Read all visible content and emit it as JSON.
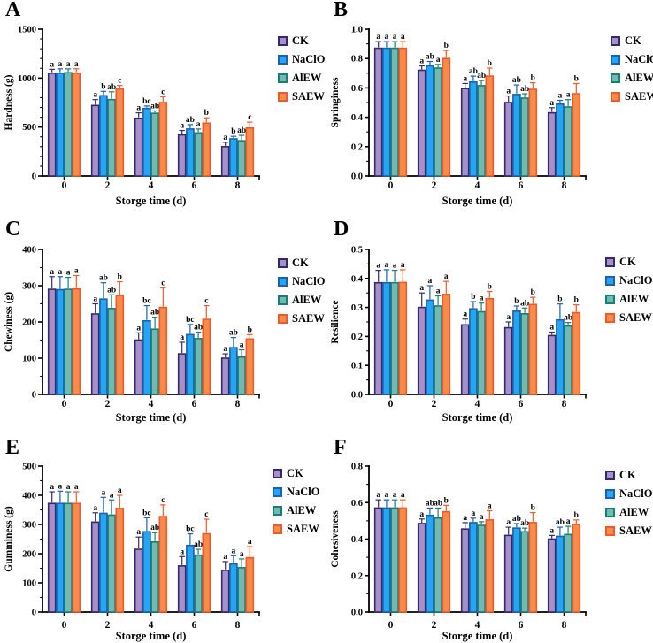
{
  "colors": {
    "CK": {
      "fill": "#a78fc9",
      "stroke": "#332a6b"
    },
    "NaClO": {
      "fill": "#24a7f0",
      "stroke": "#1d5fb5"
    },
    "AlEW": {
      "fill": "#73b9b1",
      "stroke": "#158078"
    },
    "SAEW": {
      "fill": "#f78b4c",
      "stroke": "#ee5a28"
    }
  },
  "chart_data": [
    {
      "panel": "A",
      "type": "bar",
      "title": "",
      "xlabel": "Storge time (d)",
      "ylabel": "Hardness (g)",
      "ylim": [
        0,
        1500
      ],
      "yticks": [
        "0",
        "500",
        "1000",
        "1500"
      ],
      "minor_per_interval": 4,
      "categories": [
        "0",
        "2",
        "4",
        "6",
        "8"
      ],
      "legend": [
        "CK",
        "NaClO",
        "AlEW",
        "SAEW"
      ],
      "legend_position": "right",
      "grid": false,
      "series": [
        {
          "name": "CK",
          "values": [
            1050,
            720,
            590,
            420,
            300
          ],
          "errors": [
            40,
            60,
            55,
            45,
            45
          ],
          "sig_letters": [
            "a",
            "a",
            "a",
            "a",
            "a"
          ]
        },
        {
          "name": "NaClO",
          "values": [
            1050,
            820,
            690,
            480,
            380
          ],
          "errors": [
            45,
            45,
            25,
            45,
            25
          ],
          "sig_letters": [
            "a",
            "b",
            "bc",
            "ab",
            "b"
          ]
        },
        {
          "name": "AlEW",
          "values": [
            1055,
            780,
            640,
            440,
            360
          ],
          "errors": [
            40,
            80,
            25,
            40,
            55
          ],
          "sig_letters": [
            "a",
            "ab",
            "ab",
            "a",
            "ab"
          ]
        },
        {
          "name": "SAEW",
          "values": [
            1050,
            890,
            750,
            540,
            490
          ],
          "errors": [
            45,
            35,
            60,
            55,
            60
          ],
          "sig_letters": [
            "a",
            "c",
            "c",
            "b",
            "c"
          ]
        }
      ]
    },
    {
      "panel": "B",
      "type": "bar",
      "title": "",
      "xlabel": "Storge time (d)",
      "ylabel": "Springiness",
      "ylim": [
        0,
        1.0
      ],
      "yticks": [
        "0.0",
        "0.2",
        "0.4",
        "0.6",
        "0.8",
        "1.0"
      ],
      "minor_per_interval": 1,
      "categories": [
        "0",
        "2",
        "4",
        "6",
        "8"
      ],
      "legend": [
        "CK",
        "NaClO",
        "AlEW",
        "SAEW"
      ],
      "legend_position": "right",
      "grid": false,
      "series": [
        {
          "name": "CK",
          "values": [
            0.87,
            0.72,
            0.595,
            0.5,
            0.43
          ],
          "errors": [
            0.045,
            0.03,
            0.035,
            0.045,
            0.035
          ],
          "sig_letters": [
            "a",
            "a",
            "a",
            "a",
            "a"
          ]
        },
        {
          "name": "NaClO",
          "values": [
            0.87,
            0.75,
            0.64,
            0.555,
            0.49
          ],
          "errors": [
            0.045,
            0.03,
            0.04,
            0.065,
            0.025
          ],
          "sig_letters": [
            "a",
            "ab",
            "ab",
            "ab",
            "a"
          ]
        },
        {
          "name": "AlEW",
          "values": [
            0.87,
            0.735,
            0.615,
            0.53,
            0.47
          ],
          "errors": [
            0.045,
            0.025,
            0.035,
            0.03,
            0.05
          ],
          "sig_letters": [
            "a",
            "a",
            "ab",
            "ab",
            "a"
          ]
        },
        {
          "name": "SAEW",
          "values": [
            0.87,
            0.8,
            0.68,
            0.59,
            0.56
          ],
          "errors": [
            0.045,
            0.055,
            0.055,
            0.045,
            0.07
          ],
          "sig_letters": [
            "a",
            "b",
            "b",
            "b",
            "b"
          ]
        }
      ]
    },
    {
      "panel": "C",
      "type": "bar",
      "title": "",
      "xlabel": "Storge time (d)",
      "ylabel": "Chewiness (g)",
      "ylim": [
        0,
        400
      ],
      "yticks": [
        "0",
        "100",
        "200",
        "300",
        "400"
      ],
      "minor_per_interval": 1,
      "categories": [
        "0",
        "2",
        "4",
        "6",
        "8"
      ],
      "legend": [
        "CK",
        "NaClO",
        "AlEW",
        "SAEW"
      ],
      "legend_position": "right",
      "grid": false,
      "series": [
        {
          "name": "CK",
          "values": [
            290,
            222,
            150,
            112,
            100
          ],
          "errors": [
            35,
            28,
            20,
            32,
            12
          ],
          "sig_letters": [
            "a",
            "a",
            "a",
            "a",
            "a"
          ]
        },
        {
          "name": "NaClO",
          "values": [
            289,
            263,
            203,
            165,
            129
          ],
          "errors": [
            36,
            45,
            42,
            28,
            28
          ],
          "sig_letters": [
            "a",
            "ab",
            "bc",
            "bc",
            "ab"
          ]
        },
        {
          "name": "AlEW",
          "values": [
            290,
            237,
            180,
            154,
            103
          ],
          "errors": [
            33,
            38,
            33,
            18,
            20
          ],
          "sig_letters": [
            "a",
            "ab",
            "ab",
            "ab",
            "a"
          ]
        },
        {
          "name": "SAEW",
          "values": [
            291,
            273,
            240,
            207,
            153
          ],
          "errors": [
            37,
            38,
            54,
            38,
            12
          ],
          "sig_letters": [
            "a",
            "b",
            "c",
            "c",
            "b"
          ]
        }
      ]
    },
    {
      "panel": "D",
      "type": "bar",
      "title": "",
      "xlabel": "Storge time (d)",
      "ylabel": "Resilience",
      "ylim": [
        0,
        0.5
      ],
      "yticks": [
        "0.0",
        "0.1",
        "0.2",
        "0.3",
        "0.4",
        "0.5"
      ],
      "minor_per_interval": 1,
      "categories": [
        "0",
        "2",
        "4",
        "6",
        "8"
      ],
      "legend": [
        "CK",
        "NaClO",
        "AlEW",
        "SAEW"
      ],
      "legend_position": "right",
      "grid": false,
      "series": [
        {
          "name": "CK",
          "values": [
            0.385,
            0.3,
            0.24,
            0.23,
            0.203
          ],
          "errors": [
            0.043,
            0.05,
            0.02,
            0.02,
            0.012
          ],
          "sig_letters": [
            "a",
            "a",
            "a",
            "a",
            "a"
          ]
        },
        {
          "name": "NaClO",
          "values": [
            0.385,
            0.325,
            0.295,
            0.287,
            0.257
          ],
          "errors": [
            0.045,
            0.05,
            0.025,
            0.018,
            0.055
          ],
          "sig_letters": [
            "a",
            "a",
            "b",
            "b",
            "b"
          ]
        },
        {
          "name": "AlEW",
          "values": [
            0.385,
            0.305,
            0.285,
            0.278,
            0.236
          ],
          "errors": [
            0.043,
            0.035,
            0.03,
            0.02,
            0.012
          ],
          "sig_letters": [
            "a",
            "a",
            "a",
            "ab",
            "ab"
          ]
        },
        {
          "name": "SAEW",
          "values": [
            0.386,
            0.345,
            0.33,
            0.31,
            0.282
          ],
          "errors": [
            0.044,
            0.045,
            0.025,
            0.025,
            0.027
          ],
          "sig_letters": [
            "a",
            "a",
            "b",
            "b",
            "b"
          ]
        }
      ]
    },
    {
      "panel": "E",
      "type": "bar",
      "title": "",
      "xlabel": "Storge time (d)",
      "ylabel": "Gumminess (g)",
      "ylim": [
        0,
        500
      ],
      "yticks": [
        "0",
        "100",
        "200",
        "300",
        "400",
        "500"
      ],
      "minor_per_interval": 1,
      "categories": [
        "0",
        "2",
        "4",
        "6",
        "8"
      ],
      "legend": [
        "CK",
        "NaClO",
        "AlEW",
        "SAEW"
      ],
      "legend_position": "right",
      "grid": false,
      "series": [
        {
          "name": "CK",
          "values": [
            372,
            308,
            215,
            158,
            143
          ],
          "errors": [
            40,
            32,
            42,
            32,
            30
          ],
          "sig_letters": [
            "a",
            "a",
            "a",
            "a",
            "a"
          ]
        },
        {
          "name": "NaClO",
          "values": [
            372,
            338,
            275,
            228,
            165
          ],
          "errors": [
            42,
            55,
            48,
            40,
            28
          ],
          "sig_letters": [
            "a",
            "a",
            "bc",
            "bc",
            "a"
          ]
        },
        {
          "name": "AlEW",
          "values": [
            372,
            332,
            240,
            195,
            152
          ],
          "errors": [
            40,
            52,
            32,
            20,
            30
          ],
          "sig_letters": [
            "a",
            "a",
            "ab",
            "ab",
            "a"
          ]
        },
        {
          "name": "SAEW",
          "values": [
            372,
            355,
            327,
            268,
            186
          ],
          "errors": [
            40,
            45,
            40,
            50,
            38
          ],
          "sig_letters": [
            "a",
            "a",
            "c",
            "c",
            "a"
          ]
        }
      ]
    },
    {
      "panel": "F",
      "type": "bar",
      "title": "",
      "xlabel": "Storge time (d)",
      "ylabel": "Cohesiveness",
      "ylim": [
        0,
        0.8
      ],
      "yticks": [
        "0.0",
        "0.2",
        "0.4",
        "0.6",
        "0.8"
      ],
      "minor_per_interval": 1,
      "categories": [
        "0",
        "2",
        "4",
        "6",
        "8"
      ],
      "legend": [
        "CK",
        "NaClO",
        "AlEW",
        "SAEW"
      ],
      "legend_position": "right",
      "grid": false,
      "series": [
        {
          "name": "CK",
          "values": [
            0.57,
            0.485,
            0.455,
            0.42,
            0.4
          ],
          "errors": [
            0.045,
            0.025,
            0.035,
            0.045,
            0.02
          ],
          "sig_letters": [
            "a",
            "a",
            "a",
            "a",
            "a"
          ]
        },
        {
          "name": "NaClO",
          "values": [
            0.57,
            0.53,
            0.49,
            0.46,
            0.415
          ],
          "errors": [
            0.045,
            0.04,
            0.025,
            0.025,
            0.05
          ],
          "sig_letters": [
            "a",
            "ab",
            "a",
            "ab",
            "ab"
          ]
        },
        {
          "name": "AlEW",
          "values": [
            0.57,
            0.515,
            0.475,
            0.44,
            0.425
          ],
          "errors": [
            0.045,
            0.055,
            0.02,
            0.02,
            0.045
          ],
          "sig_letters": [
            "a",
            "ab",
            "a",
            "ab",
            "a"
          ]
        },
        {
          "name": "SAEW",
          "values": [
            0.57,
            0.55,
            0.505,
            0.49,
            0.48
          ],
          "errors": [
            0.045,
            0.035,
            0.05,
            0.055,
            0.025
          ],
          "sig_letters": [
            "a",
            "b",
            "a",
            "b",
            "b"
          ]
        }
      ]
    }
  ]
}
